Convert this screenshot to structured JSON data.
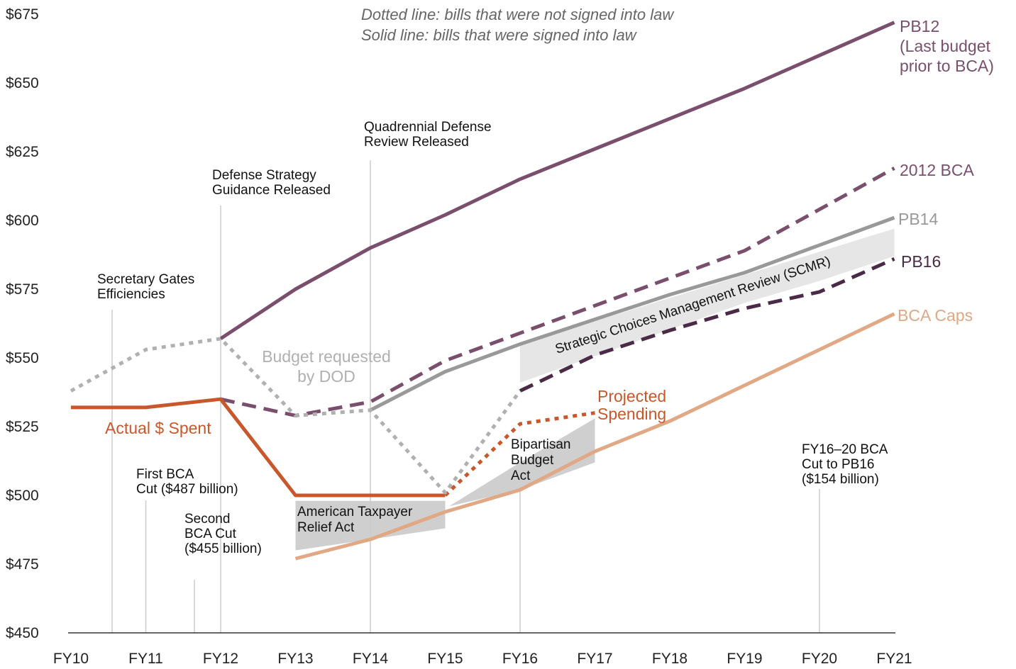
{
  "chart_data": {
    "type": "line",
    "x": [
      "FY10",
      "FY11",
      "FY12",
      "FY13",
      "FY14",
      "FY15",
      "FY16",
      "FY17",
      "FY18",
      "FY19",
      "FY20",
      "FY21"
    ],
    "y_ticks": [
      "$450",
      "$475",
      "$500",
      "$525",
      "$550",
      "$575",
      "$600",
      "$625",
      "$650",
      "$675"
    ],
    "ylim": [
      450,
      680
    ],
    "legend_lines": [
      "Dotted line: bills that were not signed into law",
      "Solid line: bills that were signed into law"
    ],
    "series": [
      {
        "name": "PB12\n(Last budget\nprior to BCA)",
        "label_lines": [
          "PB12",
          "(Last budget",
          "prior to BCA)"
        ],
        "style": "solid",
        "color": "#7a4f6d",
        "points": [
          [
            2,
            557
          ],
          [
            3,
            575
          ],
          [
            4,
            590
          ],
          [
            5,
            602
          ],
          [
            6,
            615
          ],
          [
            7,
            626
          ],
          [
            8,
            637
          ],
          [
            9,
            648
          ],
          [
            10,
            660
          ],
          [
            11,
            672
          ]
        ]
      },
      {
        "name": "2012 BCA",
        "label_lines": [
          "2012 BCA"
        ],
        "style": "dashed",
        "color": "#7a4f6d",
        "points": [
          [
            2,
            535
          ],
          [
            3,
            529
          ],
          [
            4,
            534
          ],
          [
            5,
            549
          ],
          [
            6,
            559
          ],
          [
            7,
            569
          ],
          [
            8,
            579
          ],
          [
            9,
            589
          ],
          [
            10,
            604
          ],
          [
            11,
            619
          ]
        ]
      },
      {
        "name": "PB14",
        "label_lines": [
          "PB14"
        ],
        "style": "solid",
        "color": "#999999",
        "points": [
          [
            4,
            531
          ],
          [
            5,
            545
          ],
          [
            6,
            555
          ],
          [
            7,
            564
          ],
          [
            8,
            573
          ],
          [
            9,
            581
          ],
          [
            10,
            591
          ],
          [
            11,
            601
          ]
        ]
      },
      {
        "name": "PB16",
        "label_lines": [
          "PB16"
        ],
        "style": "dashed",
        "color": "#4a2a47",
        "points": [
          [
            6,
            538
          ],
          [
            7,
            551
          ],
          [
            8,
            560
          ],
          [
            9,
            568
          ],
          [
            10,
            574
          ],
          [
            11,
            586
          ]
        ]
      },
      {
        "name": "BCA Caps",
        "label_lines": [
          "BCA Caps"
        ],
        "style": "solid",
        "color": "#e0a884",
        "points": [
          [
            3,
            477
          ],
          [
            4,
            484
          ],
          [
            5,
            494
          ],
          [
            6,
            502
          ],
          [
            7,
            516
          ],
          [
            8,
            527
          ],
          [
            9,
            540
          ],
          [
            10,
            553
          ],
          [
            11,
            566
          ]
        ]
      },
      {
        "name": "Actual $ Spent",
        "label_lines": [
          "Actual $ Spent"
        ],
        "style": "solid",
        "color": "#c8582b",
        "points": [
          [
            0,
            532
          ],
          [
            1,
            532
          ],
          [
            2,
            535
          ],
          [
            3,
            500
          ],
          [
            4,
            500
          ],
          [
            5,
            500
          ]
        ]
      },
      {
        "name": "Projected Spending",
        "label_lines": [
          "Projected",
          "Spending"
        ],
        "style": "dotted",
        "color": "#c8582b",
        "points": [
          [
            5,
            500
          ],
          [
            6,
            526
          ],
          [
            7,
            530
          ]
        ]
      },
      {
        "name": "Budget requested by DOD",
        "label_lines": [
          "Budget requested",
          "by DOD"
        ],
        "style": "dotted",
        "color": "#b0b0b0",
        "points": [
          [
            0,
            538
          ],
          [
            1,
            553
          ],
          [
            2,
            557
          ],
          [
            3,
            529
          ],
          [
            4,
            531
          ],
          [
            5,
            501
          ],
          [
            6,
            538
          ]
        ]
      }
    ],
    "bands": [
      {
        "label": "American Taxpayer Relief Act",
        "label_lines": [
          "American Taxpayer",
          "Relief Act"
        ]
      },
      {
        "label": "Bipartisan Budget Act",
        "label_lines": [
          "Bipartisan",
          "Budget",
          "Act"
        ]
      },
      {
        "label": "Strategic Choices Management Review (SCMR)",
        "label_lines": [
          "Strategic Choices Management Review (SCMR)"
        ]
      }
    ],
    "events": [
      {
        "label_lines": [
          "Secretary Gates",
          "Efficiencies"
        ],
        "x": 0.55
      },
      {
        "label_lines": [
          "First BCA",
          "Cut ($487 billion)"
        ],
        "x": 1.0
      },
      {
        "label_lines": [
          "Second",
          "BCA Cut",
          "($455 billion)"
        ],
        "x": 1.65
      },
      {
        "label_lines": [
          "Defense Strategy",
          "Guidance Released"
        ],
        "x": 2.0
      },
      {
        "label_lines": [
          "Quadrennial Defense",
          "Review Released"
        ],
        "x": 4.0
      },
      {
        "label_lines": [],
        "x": 6.0
      },
      {
        "label_lines": [
          "FY16–20 BCA",
          "Cut to PB16",
          "($154 billion)"
        ],
        "x": 10.0
      }
    ]
  }
}
